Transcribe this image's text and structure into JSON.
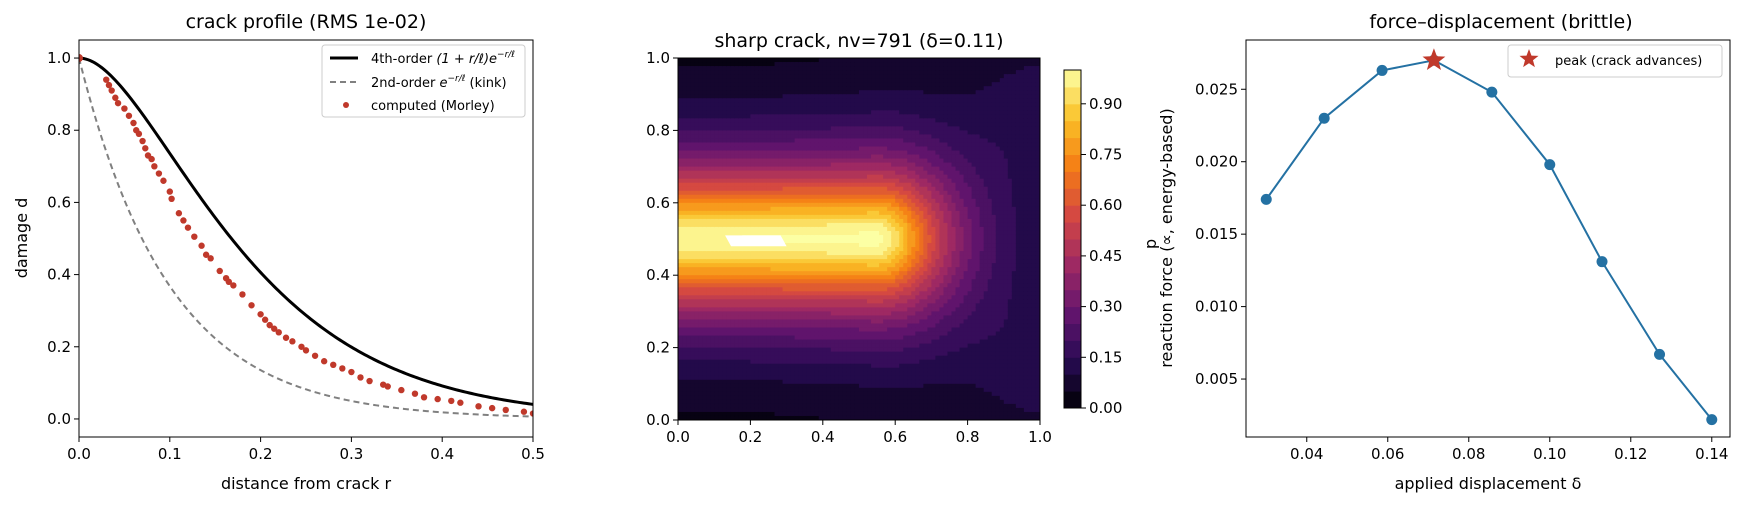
{
  "chart_data": [
    {
      "type": "line",
      "title": "crack profile (RMS 1e-02)",
      "xlabel": "distance from crack  r",
      "ylabel": "damage d",
      "xlim": [
        0,
        0.5
      ],
      "ylim": [
        -0.05,
        1.05
      ],
      "xticks": [
        "0.0",
        "0.1",
        "0.2",
        "0.3",
        "0.4",
        "0.5"
      ],
      "yticks": [
        "0.0",
        "0.2",
        "0.4",
        "0.6",
        "0.8",
        "1.0"
      ],
      "ell": 0.1,
      "legend_position": "upper-right",
      "series": [
        {
          "name": "4th-order",
          "name_math": "(1 + r/ℓ)e",
          "name_sup": "−r/ℓ",
          "color": "#000000",
          "style": "solid"
        },
        {
          "name": "2nd-order",
          "name_math": "e",
          "name_sup": "−r/ℓ",
          "name_suffix": "(kink)",
          "color": "#808080",
          "style": "dashed"
        },
        {
          "name": "computed (Morley)",
          "color": "#c0392b",
          "style": "markers",
          "points": [
            [
              0.03,
              0.94
            ],
            [
              0.033,
              0.925
            ],
            [
              0.036,
              0.91
            ],
            [
              0.04,
              0.89
            ],
            [
              0.043,
              0.875
            ],
            [
              0.05,
              0.86
            ],
            [
              0.055,
              0.84
            ],
            [
              0.06,
              0.82
            ],
            [
              0.063,
              0.8
            ],
            [
              0.066,
              0.79
            ],
            [
              0.07,
              0.77
            ],
            [
              0.073,
              0.75
            ],
            [
              0.076,
              0.73
            ],
            [
              0.08,
              0.72
            ],
            [
              0.083,
              0.7
            ],
            [
              0.088,
              0.68
            ],
            [
              0.093,
              0.66
            ],
            [
              0.1,
              0.63
            ],
            [
              0.102,
              0.61
            ],
            [
              0.11,
              0.57
            ],
            [
              0.115,
              0.55
            ],
            [
              0.12,
              0.53
            ],
            [
              0.127,
              0.505
            ],
            [
              0.135,
              0.48
            ],
            [
              0.14,
              0.455
            ],
            [
              0.145,
              0.445
            ],
            [
              0.155,
              0.41
            ],
            [
              0.162,
              0.39
            ],
            [
              0.165,
              0.38
            ],
            [
              0.17,
              0.37
            ],
            [
              0.18,
              0.345
            ],
            [
              0.19,
              0.315
            ],
            [
              0.2,
              0.29
            ],
            [
              0.205,
              0.275
            ],
            [
              0.21,
              0.26
            ],
            [
              0.215,
              0.25
            ],
            [
              0.22,
              0.24
            ],
            [
              0.228,
              0.225
            ],
            [
              0.235,
              0.215
            ],
            [
              0.245,
              0.2
            ],
            [
              0.25,
              0.19
            ],
            [
              0.26,
              0.175
            ],
            [
              0.27,
              0.16
            ],
            [
              0.28,
              0.15
            ],
            [
              0.29,
              0.14
            ],
            [
              0.3,
              0.13
            ],
            [
              0.31,
              0.115
            ],
            [
              0.32,
              0.105
            ],
            [
              0.335,
              0.095
            ],
            [
              0.34,
              0.09
            ],
            [
              0.355,
              0.08
            ],
            [
              0.37,
              0.07
            ],
            [
              0.38,
              0.06
            ],
            [
              0.395,
              0.055
            ],
            [
              0.41,
              0.05
            ],
            [
              0.42,
              0.045
            ],
            [
              0.44,
              0.035
            ],
            [
              0.455,
              0.03
            ],
            [
              0.47,
              0.025
            ],
            [
              0.49,
              0.02
            ],
            [
              0.5,
              0.015
            ]
          ]
        }
      ]
    },
    {
      "type": "heatmap",
      "title": "sharp crack, nv=791 (δ=0.11)",
      "xlim": [
        0,
        1
      ],
      "ylim": [
        0,
        1
      ],
      "xticks": [
        "0.0",
        "0.2",
        "0.4",
        "0.6",
        "0.8",
        "1.0"
      ],
      "yticks": [
        "0.0",
        "0.2",
        "0.4",
        "0.6",
        "0.8",
        "1.0"
      ],
      "colormap": "inferno",
      "levels": 20,
      "colorbar_label": "d",
      "colorbar_ticks": [
        "0.00",
        "0.15",
        "0.30",
        "0.45",
        "0.60",
        "0.75",
        "0.90"
      ],
      "crack": {
        "x_start": 0.0,
        "x_end": 0.55,
        "y": 0.5,
        "tip_width": 0.08
      },
      "void": {
        "x_start": 0.13,
        "x_end": 0.3,
        "y_low": 0.48,
        "y_high": 0.51
      }
    },
    {
      "type": "line",
      "title": "force–displacement (brittle)",
      "xlabel": "applied displacement δ",
      "ylabel": "reaction force  (∝, energy-based)",
      "xlim": [
        0.025,
        0.1445
      ],
      "ylim": [
        0.001,
        0.0284
      ],
      "xticks": [
        "0.04",
        "0.06",
        "0.08",
        "0.10",
        "0.12",
        "0.14"
      ],
      "yticks": [
        "0.005",
        "0.010",
        "0.015",
        "0.020",
        "0.025"
      ],
      "series": [
        {
          "name": "",
          "color": "#2471a3",
          "x": [
            0.03,
            0.0443,
            0.0586,
            0.0714,
            0.0857,
            0.1,
            0.1129,
            0.1271,
            0.14
          ],
          "y": [
            0.0174,
            0.023,
            0.0263,
            0.027,
            0.0248,
            0.0198,
            0.0131,
            0.0067,
            0.0022
          ]
        }
      ],
      "peak": {
        "x": 0.0714,
        "y": 0.027,
        "label": "peak (crack advances)",
        "color": "#c0392b"
      },
      "legend_position": "upper-right"
    }
  ]
}
